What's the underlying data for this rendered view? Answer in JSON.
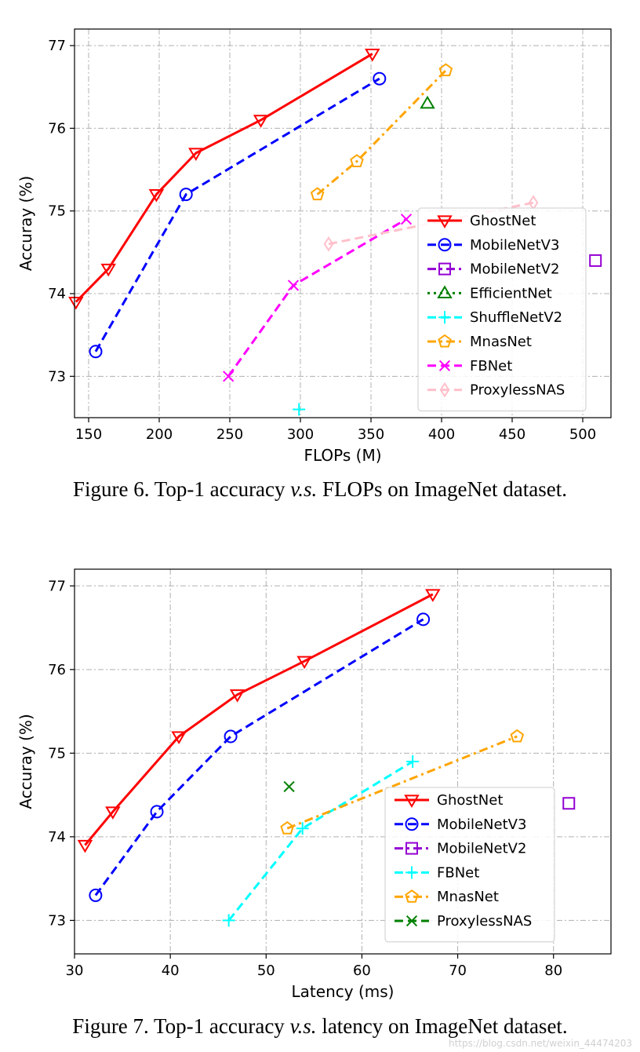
{
  "chart_data": [
    {
      "type": "line",
      "id": "fig6",
      "xlabel": "FLOPs (M)",
      "ylabel": "Accuray (%)",
      "xlim": [
        140,
        520
      ],
      "ylim": [
        72.5,
        77.2
      ],
      "xticks": [
        150,
        200,
        250,
        300,
        350,
        400,
        450,
        500
      ],
      "yticks": [
        73,
        74,
        75,
        76,
        77
      ],
      "grid": true,
      "legend_position": "bottom-right",
      "series": [
        {
          "name": "GhostNet",
          "color": "#ff0000",
          "linestyle": "solid",
          "marker": "triangle-down",
          "x": [
            141,
            164,
            198,
            226,
            272,
            351
          ],
          "y": [
            73.9,
            74.3,
            75.2,
            75.7,
            76.1,
            76.9
          ]
        },
        {
          "name": "MobileNetV3",
          "color": "#0000ff",
          "linestyle": "dashed",
          "marker": "circle",
          "x": [
            155,
            219,
            356
          ],
          "y": [
            73.3,
            75.2,
            76.6
          ]
        },
        {
          "name": "MobileNetV2",
          "color": "#9400d3",
          "linestyle": "dashdot",
          "marker": "square",
          "x": [
            509
          ],
          "y": [
            74.4
          ]
        },
        {
          "name": "EfficientNet",
          "color": "#008000",
          "linestyle": "dotted",
          "marker": "triangle-up",
          "x": [
            390
          ],
          "y": [
            76.3
          ]
        },
        {
          "name": "ShuffleNetV2",
          "color": "#00ffff",
          "linestyle": "dashed",
          "marker": "plus",
          "x": [
            299
          ],
          "y": [
            72.6
          ]
        },
        {
          "name": "MnasNet",
          "color": "#ffa500",
          "linestyle": "dashdot",
          "marker": "pentagon",
          "x": [
            312,
            340,
            403
          ],
          "y": [
            75.2,
            75.6,
            76.7
          ]
        },
        {
          "name": "FBNet",
          "color": "#ff00ff",
          "linestyle": "dashed",
          "marker": "x",
          "x": [
            249,
            295,
            375
          ],
          "y": [
            73.0,
            74.1,
            74.9
          ]
        },
        {
          "name": "ProxylessNAS",
          "color": "#ffc0cb",
          "linestyle": "dashed",
          "marker": "diamond",
          "x": [
            320,
            465
          ],
          "y": [
            74.6,
            75.1
          ]
        }
      ]
    },
    {
      "type": "line",
      "id": "fig7",
      "xlabel": "Latency (ms)",
      "ylabel": "Accuray (%)",
      "xlim": [
        30,
        86
      ],
      "ylim": [
        72.6,
        77.2
      ],
      "xticks": [
        30,
        40,
        50,
        60,
        70,
        80
      ],
      "yticks": [
        73,
        74,
        75,
        76,
        77
      ],
      "grid": true,
      "legend_position": "bottom-right",
      "series": [
        {
          "name": "GhostNet",
          "color": "#ff0000",
          "linestyle": "solid",
          "marker": "triangle-down",
          "x": [
            31.1,
            34.0,
            40.9,
            47.0,
            54.0,
            67.4
          ],
          "y": [
            73.9,
            74.3,
            75.2,
            75.7,
            76.1,
            76.9
          ]
        },
        {
          "name": "MobileNetV3",
          "color": "#0000ff",
          "linestyle": "dashed",
          "marker": "circle",
          "x": [
            32.2,
            38.6,
            46.3,
            66.4
          ],
          "y": [
            73.3,
            74.3,
            75.2,
            76.6
          ]
        },
        {
          "name": "MobileNetV2",
          "color": "#9400d3",
          "linestyle": "dashdot",
          "marker": "square",
          "x": [
            81.6
          ],
          "y": [
            74.4
          ]
        },
        {
          "name": "FBNet",
          "color": "#00ffff",
          "linestyle": "dashed",
          "marker": "plus",
          "x": [
            46.1,
            53.8,
            65.3
          ],
          "y": [
            73.0,
            74.1,
            74.9
          ]
        },
        {
          "name": "MnasNet",
          "color": "#ffa500",
          "linestyle": "dashdot",
          "marker": "pentagon",
          "x": [
            52.2,
            76.2
          ],
          "y": [
            74.1,
            75.2
          ]
        },
        {
          "name": "ProxylessNAS",
          "color": "#008000",
          "linestyle": "dashed",
          "marker": "x",
          "x": [
            52.4
          ],
          "y": [
            74.6
          ]
        }
      ]
    }
  ],
  "captions": {
    "fig6_prefix": "Figure 6. Top-1 accuracy ",
    "fig6_vs": "v.s.",
    "fig6_suffix": " FLOPs on ImageNet dataset.",
    "fig7_prefix": "Figure 7. Top-1 accuracy ",
    "fig7_vs": "v.s.",
    "fig7_suffix": " latency on ImageNet dataset."
  },
  "watermark": "https://blog.csdn.net/weixin_44474203"
}
